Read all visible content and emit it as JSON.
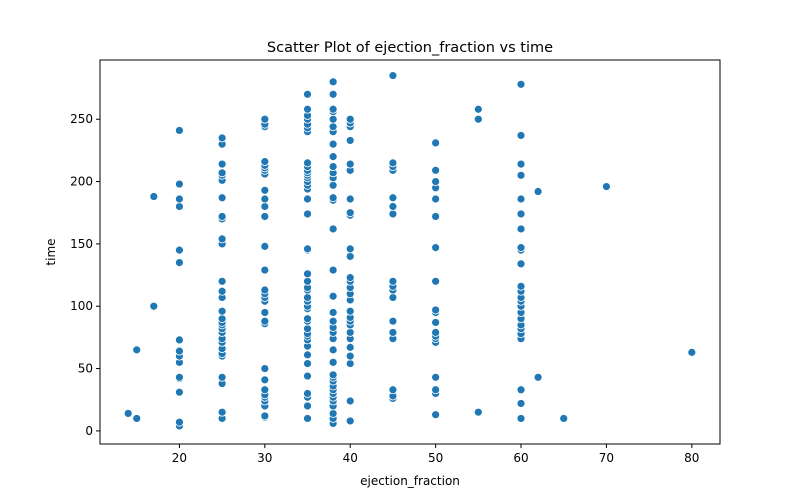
{
  "chart_data": {
    "type": "scatter",
    "title": "Scatter Plot of ejection_fraction vs time",
    "xlabel": "ejection_fraction",
    "ylabel": "time",
    "xlim": [
      10.7,
      83.3
    ],
    "ylim": [
      -10.5,
      297.5
    ],
    "xticks": [
      20,
      30,
      40,
      50,
      60,
      70,
      80
    ],
    "yticks": [
      0,
      50,
      100,
      150,
      200,
      250
    ],
    "grid": false,
    "color": "#1f77b4",
    "points": [
      [
        14,
        14
      ],
      [
        15,
        10
      ],
      [
        15,
        65
      ],
      [
        17,
        100
      ],
      [
        17,
        188
      ],
      [
        20,
        4
      ],
      [
        20,
        7
      ],
      [
        20,
        31
      ],
      [
        20,
        42
      ],
      [
        20,
        43
      ],
      [
        20,
        55
      ],
      [
        20,
        60
      ],
      [
        20,
        64
      ],
      [
        20,
        73
      ],
      [
        20,
        135
      ],
      [
        20,
        145
      ],
      [
        20,
        180
      ],
      [
        20,
        186
      ],
      [
        20,
        198
      ],
      [
        20,
        241
      ],
      [
        25,
        10
      ],
      [
        25,
        15
      ],
      [
        25,
        38
      ],
      [
        25,
        43
      ],
      [
        25,
        60
      ],
      [
        25,
        62
      ],
      [
        25,
        66
      ],
      [
        25,
        71
      ],
      [
        25,
        74
      ],
      [
        25,
        79
      ],
      [
        25,
        82
      ],
      [
        25,
        85
      ],
      [
        25,
        87
      ],
      [
        25,
        90
      ],
      [
        25,
        96
      ],
      [
        25,
        107
      ],
      [
        25,
        112
      ],
      [
        25,
        120
      ],
      [
        25,
        150
      ],
      [
        25,
        154
      ],
      [
        25,
        170
      ],
      [
        25,
        172
      ],
      [
        25,
        187
      ],
      [
        25,
        201
      ],
      [
        25,
        205
      ],
      [
        25,
        207
      ],
      [
        25,
        214
      ],
      [
        25,
        230
      ],
      [
        25,
        235
      ],
      [
        30,
        11
      ],
      [
        30,
        12
      ],
      [
        30,
        20
      ],
      [
        30,
        24
      ],
      [
        30,
        27
      ],
      [
        30,
        29
      ],
      [
        30,
        33
      ],
      [
        30,
        41
      ],
      [
        30,
        50
      ],
      [
        30,
        86
      ],
      [
        30,
        88
      ],
      [
        30,
        95
      ],
      [
        30,
        104
      ],
      [
        30,
        107
      ],
      [
        30,
        110
      ],
      [
        30,
        113
      ],
      [
        30,
        129
      ],
      [
        30,
        148
      ],
      [
        30,
        172
      ],
      [
        30,
        180
      ],
      [
        30,
        186
      ],
      [
        30,
        193
      ],
      [
        30,
        206
      ],
      [
        30,
        209
      ],
      [
        30,
        211
      ],
      [
        30,
        213
      ],
      [
        30,
        216
      ],
      [
        30,
        244
      ],
      [
        30,
        246
      ],
      [
        30,
        250
      ],
      [
        35,
        10
      ],
      [
        35,
        20
      ],
      [
        35,
        27
      ],
      [
        35,
        30
      ],
      [
        35,
        44
      ],
      [
        35,
        54
      ],
      [
        35,
        61
      ],
      [
        35,
        68
      ],
      [
        35,
        73
      ],
      [
        35,
        76
      ],
      [
        35,
        78
      ],
      [
        35,
        82
      ],
      [
        35,
        88
      ],
      [
        35,
        90
      ],
      [
        35,
        98
      ],
      [
        35,
        100
      ],
      [
        35,
        104
      ],
      [
        35,
        107
      ],
      [
        35,
        113
      ],
      [
        35,
        115
      ],
      [
        35,
        120
      ],
      [
        35,
        126
      ],
      [
        35,
        145
      ],
      [
        35,
        146
      ],
      [
        35,
        174
      ],
      [
        35,
        186
      ],
      [
        35,
        194
      ],
      [
        35,
        197
      ],
      [
        35,
        200
      ],
      [
        35,
        203
      ],
      [
        35,
        205
      ],
      [
        35,
        207
      ],
      [
        35,
        209
      ],
      [
        35,
        212
      ],
      [
        35,
        215
      ],
      [
        35,
        240
      ],
      [
        35,
        243
      ],
      [
        35,
        246
      ],
      [
        35,
        250
      ],
      [
        35,
        253
      ],
      [
        35,
        258
      ],
      [
        35,
        270
      ],
      [
        38,
        6
      ],
      [
        38,
        10
      ],
      [
        38,
        14
      ],
      [
        38,
        20
      ],
      [
        38,
        24
      ],
      [
        38,
        27
      ],
      [
        38,
        30
      ],
      [
        38,
        33
      ],
      [
        38,
        36
      ],
      [
        38,
        40
      ],
      [
        38,
        43
      ],
      [
        38,
        45
      ],
      [
        38,
        55
      ],
      [
        38,
        65
      ],
      [
        38,
        74
      ],
      [
        38,
        79
      ],
      [
        38,
        83
      ],
      [
        38,
        88
      ],
      [
        38,
        95
      ],
      [
        38,
        108
      ],
      [
        38,
        129
      ],
      [
        38,
        162
      ],
      [
        38,
        185
      ],
      [
        38,
        187
      ],
      [
        38,
        197
      ],
      [
        38,
        203
      ],
      [
        38,
        207
      ],
      [
        38,
        212
      ],
      [
        38,
        220
      ],
      [
        38,
        230
      ],
      [
        38,
        240
      ],
      [
        38,
        244
      ],
      [
        38,
        250
      ],
      [
        38,
        256
      ],
      [
        38,
        258
      ],
      [
        38,
        270
      ],
      [
        38,
        280
      ],
      [
        40,
        8
      ],
      [
        40,
        24
      ],
      [
        40,
        54
      ],
      [
        40,
        60
      ],
      [
        40,
        67
      ],
      [
        40,
        74
      ],
      [
        40,
        79
      ],
      [
        40,
        85
      ],
      [
        40,
        88
      ],
      [
        40,
        91
      ],
      [
        40,
        96
      ],
      [
        40,
        105
      ],
      [
        40,
        110
      ],
      [
        40,
        115
      ],
      [
        40,
        120
      ],
      [
        40,
        123
      ],
      [
        40,
        140
      ],
      [
        40,
        146
      ],
      [
        40,
        173
      ],
      [
        40,
        175
      ],
      [
        40,
        186
      ],
      [
        40,
        209
      ],
      [
        40,
        214
      ],
      [
        40,
        233
      ],
      [
        40,
        244
      ],
      [
        40,
        247
      ],
      [
        40,
        250
      ],
      [
        45,
        26
      ],
      [
        45,
        28
      ],
      [
        45,
        33
      ],
      [
        45,
        74
      ],
      [
        45,
        79
      ],
      [
        45,
        88
      ],
      [
        45,
        107
      ],
      [
        45,
        113
      ],
      [
        45,
        116
      ],
      [
        45,
        120
      ],
      [
        45,
        174
      ],
      [
        45,
        180
      ],
      [
        45,
        187
      ],
      [
        45,
        209
      ],
      [
        45,
        212
      ],
      [
        45,
        215
      ],
      [
        45,
        285
      ],
      [
        50,
        13
      ],
      [
        50,
        30
      ],
      [
        50,
        33
      ],
      [
        50,
        43
      ],
      [
        50,
        71
      ],
      [
        50,
        74
      ],
      [
        50,
        76
      ],
      [
        50,
        79
      ],
      [
        50,
        87
      ],
      [
        50,
        95
      ],
      [
        50,
        97
      ],
      [
        50,
        120
      ],
      [
        50,
        147
      ],
      [
        50,
        172
      ],
      [
        50,
        186
      ],
      [
        50,
        195
      ],
      [
        50,
        200
      ],
      [
        50,
        209
      ],
      [
        50,
        231
      ],
      [
        55,
        15
      ],
      [
        55,
        250
      ],
      [
        55,
        258
      ],
      [
        60,
        10
      ],
      [
        60,
        22
      ],
      [
        60,
        33
      ],
      [
        60,
        74
      ],
      [
        60,
        78
      ],
      [
        60,
        82
      ],
      [
        60,
        85
      ],
      [
        60,
        90
      ],
      [
        60,
        95
      ],
      [
        60,
        100
      ],
      [
        60,
        104
      ],
      [
        60,
        107
      ],
      [
        60,
        112
      ],
      [
        60,
        116
      ],
      [
        60,
        134
      ],
      [
        60,
        145
      ],
      [
        60,
        147
      ],
      [
        60,
        162
      ],
      [
        60,
        174
      ],
      [
        60,
        186
      ],
      [
        60,
        205
      ],
      [
        60,
        214
      ],
      [
        60,
        237
      ],
      [
        60,
        278
      ],
      [
        62,
        43
      ],
      [
        62,
        192
      ],
      [
        65,
        10
      ],
      [
        70,
        196
      ],
      [
        80,
        63
      ]
    ]
  }
}
